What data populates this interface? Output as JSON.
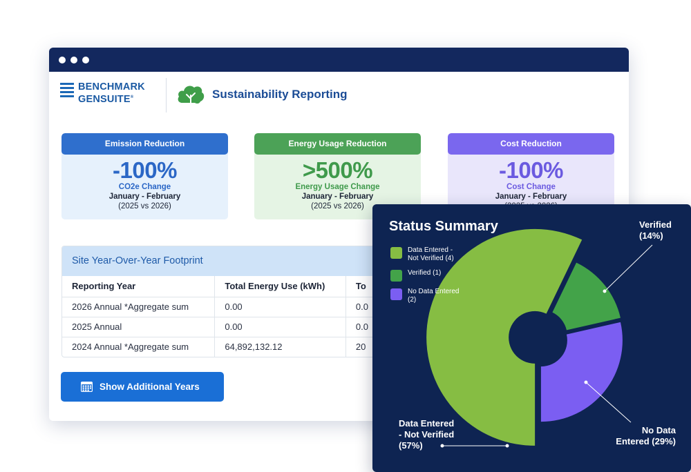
{
  "brand": {
    "line1": "BENCHMARK",
    "line2": "GENSUITE",
    "mark": "®"
  },
  "app": {
    "title": "Sustainability Reporting",
    "icon": "cloud-leaf-icon"
  },
  "cards": [
    {
      "header": "Emission Reduction",
      "value": "-100%",
      "metric": "CO2e Change",
      "period": "January - February",
      "years": "(2025 vs 2026)",
      "color": "#2f6fcd"
    },
    {
      "header": "Energy Usage Reduction",
      "value": ">500%",
      "metric": "Energy Usage Change",
      "period": "January - February",
      "years": "(2025 vs 2026)",
      "color": "#4ca257"
    },
    {
      "header": "Cost Reduction",
      "value": "-100%",
      "metric": "Cost Change",
      "period": "January - February",
      "years": "(2025 vs 2026)",
      "color": "#7a67ee"
    }
  ],
  "footprint": {
    "title": "Site Year-Over-Year Footprint",
    "columns": [
      "Reporting Year",
      "Total Energy Use (kWh)",
      "To"
    ],
    "rows": [
      [
        "2026 Annual *Aggregate sum",
        "0.00",
        "0.0"
      ],
      [
        "2025 Annual",
        "0.00",
        "0.0"
      ],
      [
        "2024 Annual *Aggregate sum",
        "64,892,132.12",
        "20"
      ]
    ]
  },
  "actions": {
    "show_years": "Show Additional Years",
    "show_years_icon": "calendar-icon"
  },
  "status": {
    "title": "Status Summary",
    "legend": [
      {
        "label": "Data Entered - Not Verified (4)",
        "color": "#86bd43"
      },
      {
        "label": "Verified (1)",
        "color": "#43a349"
      },
      {
        "label": "No Data Entered (2)",
        "color": "#7b5ef2"
      }
    ],
    "slice_labels": {
      "verified": {
        "line1": "Verified",
        "line2": "(14%)"
      },
      "no_data": {
        "line1": "No Data",
        "line2": "Entered (29%)"
      },
      "not_verified": {
        "line1": "Data Entered",
        "line2": "- Not Verified",
        "line3": "(57%)"
      }
    }
  },
  "chart_data": {
    "type": "pie",
    "title": "Status Summary",
    "categories": [
      "Data Entered - Not Verified",
      "Verified",
      "No Data Entered"
    ],
    "values": [
      4,
      1,
      2
    ],
    "percentages": [
      57,
      14,
      29
    ],
    "colors": [
      "#86bd43",
      "#43a349",
      "#7b5ef2"
    ],
    "legend": "top-left"
  }
}
